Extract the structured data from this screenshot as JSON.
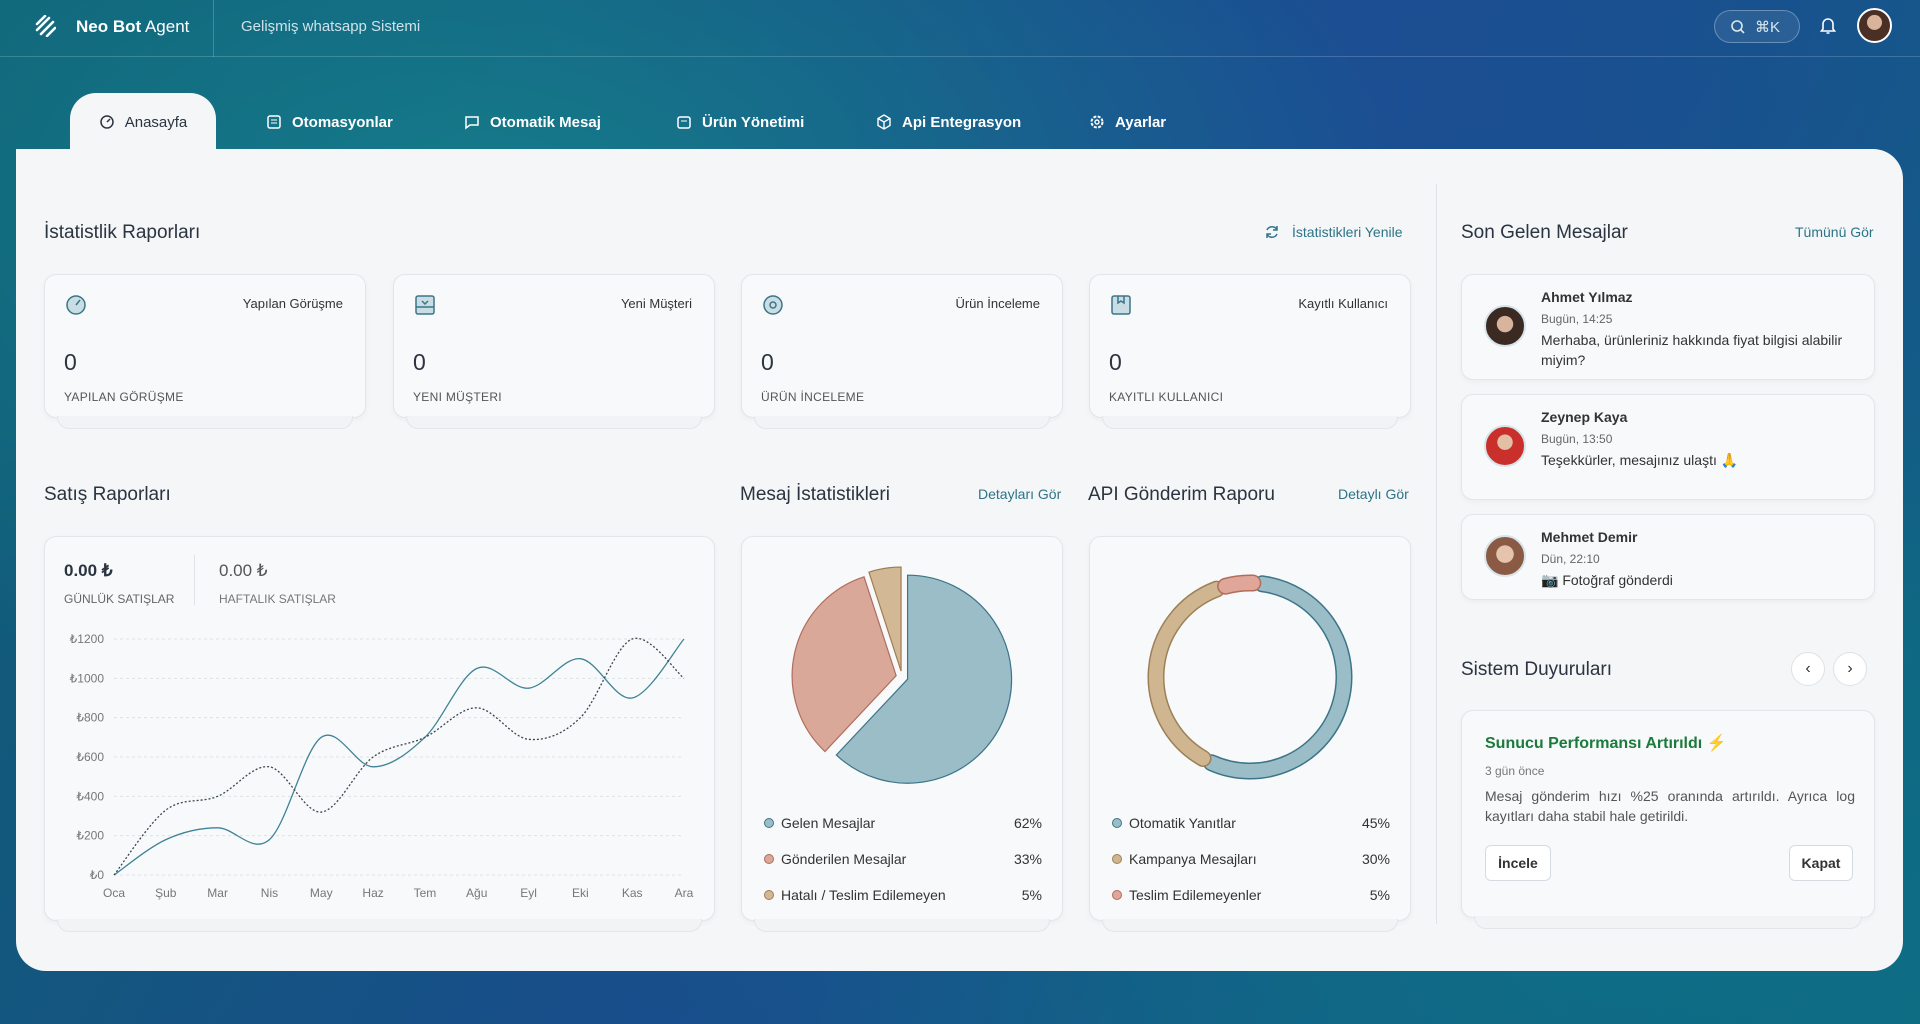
{
  "header": {
    "brand_bold": "Neo Bot",
    "brand_light": "Agent",
    "subtitle": "Gelişmiş whatsapp Sistemi",
    "search_shortcut": "⌘K"
  },
  "tabs": [
    "Anasayfa",
    "Otomasyonlar",
    "Otomatik Mesaj",
    "Ürün Yönetimi",
    "Api Entegrasyon",
    "Ayarlar"
  ],
  "stats": {
    "title": "İstatistlik Raporları",
    "refresh": "İstatistikleri Yenile",
    "cards": [
      {
        "label": "Yapılan Görüşme",
        "value": 0,
        "caption": "YAPILAN GÖRÜŞME"
      },
      {
        "label": "Yeni Müşteri",
        "value": 0,
        "caption": "YENI MÜŞTERI"
      },
      {
        "label": "Ürün İnceleme",
        "value": 0,
        "caption": "ÜRÜN İNCELEME"
      },
      {
        "label": "Kayıtlı Kullanıcı",
        "value": 0,
        "caption": "KAYITLI KULLANICI"
      }
    ]
  },
  "sales": {
    "title": "Satış Raporları",
    "daily_value": "0.00 ₺",
    "daily_label": "GÜNLÜK SATIŞLAR",
    "weekly_value": "0.00 ₺",
    "weekly_label": "HAFTALIK SATIŞLAR"
  },
  "message_stats": {
    "title": "Mesaj İstatistikleri",
    "link": "Detayları Gör"
  },
  "api_report": {
    "title": "API Gönderim Raporu",
    "link": "Detaylı Gör"
  },
  "chart_data": [
    {
      "type": "line",
      "categories": [
        "Oca",
        "Şub",
        "Mar",
        "Nis",
        "May",
        "Haz",
        "Tem",
        "Ağu",
        "Eyl",
        "Eki",
        "Kas",
        "Ara"
      ],
      "series": [
        {
          "color": "#3e8397",
          "line_style": "solid",
          "values": [
            0,
            180,
            240,
            180,
            700,
            550,
            700,
            1050,
            950,
            1100,
            900,
            1200
          ]
        },
        {
          "color": "#3b4650",
          "line_style": "dotted",
          "values": [
            0,
            330,
            400,
            550,
            320,
            600,
            700,
            850,
            690,
            800,
            1200,
            1000
          ]
        }
      ],
      "ylim": [
        0,
        1200
      ],
      "yticks": [
        {
          "value": 0,
          "label": "₺0"
        },
        {
          "value": 200,
          "label": "₺200"
        },
        {
          "value": 400,
          "label": "₺400"
        },
        {
          "value": 600,
          "label": "₺600"
        },
        {
          "value": 800,
          "label": "₺800"
        },
        {
          "value": 1000,
          "label": "₺1000"
        },
        {
          "value": 1200,
          "label": "₺1200"
        }
      ],
      "grid": true
    },
    {
      "type": "pie",
      "categories": [
        "Gelen Mesajlar",
        "Gönderilen Mesajlar",
        "Hatalı / Teslim Edilemeyen"
      ],
      "values": [
        62,
        33,
        5
      ],
      "value_labels": [
        "62%",
        "33%",
        "5%"
      ],
      "colors": [
        "#9abdc8",
        "#d9a898",
        "#d3b895"
      ],
      "stroke_colors": [
        "#3c7587",
        "#b06d5c",
        "#a07c50"
      ]
    },
    {
      "type": "donut",
      "categories": [
        "Otomatik Yanıtlar",
        "Kampanya Mesajları",
        "Teslim Edilemeyenler"
      ],
      "values": [
        45,
        30,
        5
      ],
      "value_labels": [
        "45%",
        "30%",
        "5%"
      ],
      "colors": [
        "#9abdc8",
        "#cfb590",
        "#e0a69a"
      ],
      "stroke_colors": [
        "#3c7587",
        "#9c8158",
        "#b06d5c"
      ]
    }
  ],
  "messages": {
    "title": "Son Gelen Mesajlar",
    "link": "Tümünü Gör",
    "items": [
      {
        "name": "Ahmet Yılmaz",
        "time": "Bugün, 14:25",
        "text": "Merhaba, ürünleriniz hakkında fiyat bilgisi alabilir miyim?"
      },
      {
        "name": "Zeynep Kaya",
        "time": "Bugün, 13:50",
        "text": "Teşekkürler, mesajınız ulaştı 🙏"
      },
      {
        "name": "Mehmet Demir",
        "time": "Dün, 22:10",
        "text": "📷 Fotoğraf gönderdi"
      }
    ]
  },
  "announcements": {
    "title": "Sistem Duyuruları",
    "item": {
      "title": "Sunucu Performansı Artırıldı ⚡",
      "time": "3 gün önce",
      "text": "Mesaj gönderim hızı %25 oranında artırıldı. Ayrıca log kayıtları daha stabil hale getirildi.",
      "primary": "İncele",
      "secondary": "Kapat"
    }
  }
}
